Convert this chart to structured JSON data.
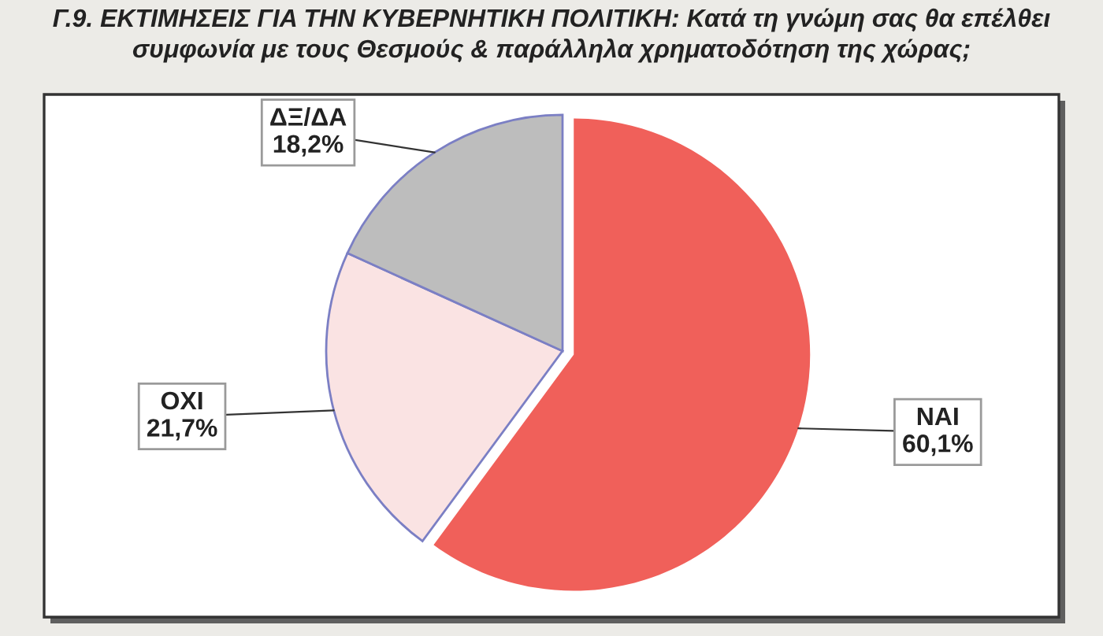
{
  "chart_data": {
    "type": "pie",
    "title": "Γ.9. ΕΚΤΙΜΗΣΕΙΣ ΓΙΑ ΤΗΝ ΚΥΒΕΡΝΗΤΙΚΗ ΠΟΛΙΤΙΚΗ: Κατά τη γνώμη σας θα επέλθει\nσυμφωνία με τους Θεσμούς & παράλληλα χρηματοδότηση της χώρας;",
    "categories": [
      "ΝΑΙ",
      "ΟΧΙ",
      "ΔΞ/ΔΑ"
    ],
    "values": [
      60.1,
      21.7,
      18.2
    ],
    "colors": [
      "#f0605a",
      "#fae3e3",
      "#bdbdbd"
    ],
    "value_labels": [
      "60,1%",
      "21,7%",
      "18,2%"
    ]
  }
}
